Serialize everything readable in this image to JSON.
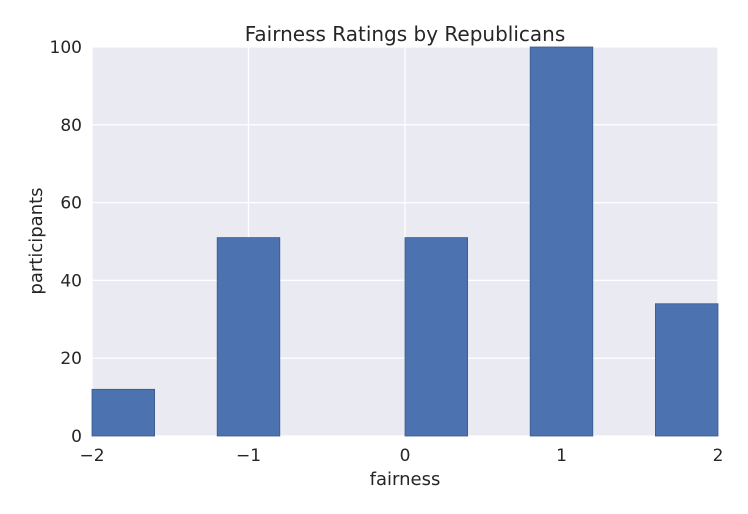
{
  "chart_data": {
    "type": "bar",
    "title": "Fairness Ratings by Republicans",
    "xlabel": "fairness",
    "ylabel": "participants",
    "xlim": [
      -2,
      2
    ],
    "ylim": [
      0,
      100
    ],
    "x_ticks": [
      -2,
      -1,
      0,
      1,
      2
    ],
    "x_tick_labels": [
      "−2",
      "−1",
      "0",
      "1",
      "2"
    ],
    "y_ticks": [
      0,
      20,
      40,
      60,
      80,
      100
    ],
    "y_tick_labels": [
      "0",
      "20",
      "40",
      "60",
      "80",
      "100"
    ],
    "bins": [
      {
        "x0": -2.0,
        "x1": -1.6,
        "value": 12
      },
      {
        "x0": -1.2,
        "x1": -0.8,
        "value": 51
      },
      {
        "x0": 0.0,
        "x1": 0.4,
        "value": 51
      },
      {
        "x0": 0.8,
        "x1": 1.2,
        "value": 100
      },
      {
        "x0": 1.6,
        "x1": 2.0,
        "value": 34
      }
    ],
    "grid": true,
    "colors": {
      "bar": "#4c72b0",
      "bar_edge": "#3a5a8c",
      "plot_background": "#eaeaf2",
      "grid": "#ffffff"
    }
  }
}
